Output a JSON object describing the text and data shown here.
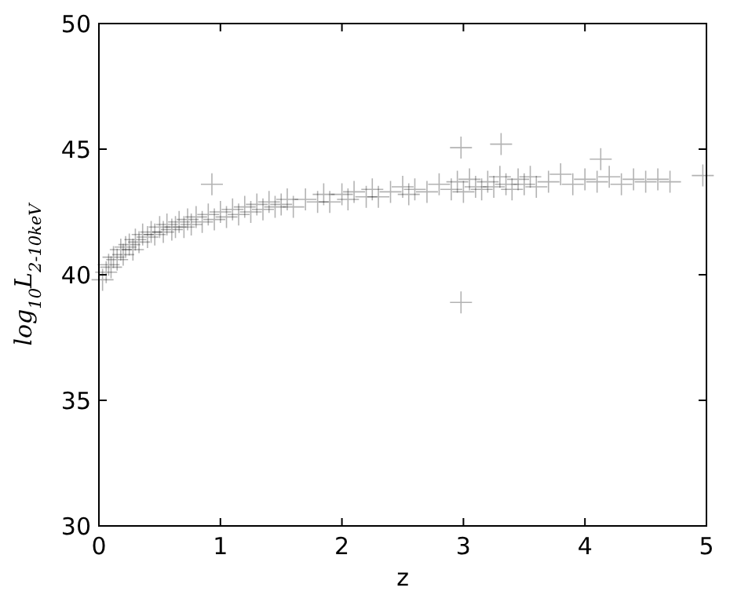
{
  "chart_data": {
    "type": "scatter",
    "xlabel": "z",
    "ylabel": "log$_{10}$L$_{2-10keV}$",
    "xlim": [
      0,
      5
    ],
    "ylim": [
      30,
      50
    ],
    "xticks": [
      0,
      1,
      2,
      3,
      4,
      5
    ],
    "yticks": [
      30,
      35,
      40,
      45,
      50
    ],
    "marker": "cross",
    "grid": false,
    "series": [
      {
        "color": "#000000",
        "x": [
          0.03,
          0.06,
          0.08,
          0.1,
          0.12,
          0.15,
          0.18,
          0.2,
          0.22,
          0.25,
          0.28,
          0.3,
          0.33,
          0.36,
          0.4,
          0.43,
          0.46,
          0.5,
          0.53,
          0.56,
          0.6,
          0.63,
          0.66,
          0.7,
          0.73,
          0.76,
          0.8,
          0.85,
          0.9,
          0.95,
          1.0,
          1.05,
          1.1,
          1.15,
          1.2,
          1.25,
          1.3,
          1.35,
          1.4,
          1.45,
          1.5,
          1.55,
          1.6,
          1.7,
          1.8,
          1.85,
          1.9,
          2.0,
          2.05,
          2.1,
          2.2,
          2.25,
          2.3,
          2.4,
          2.5,
          2.55,
          2.6,
          2.7,
          2.8,
          2.9,
          2.95,
          3.0,
          3.05,
          3.1,
          3.15,
          3.2,
          3.25,
          3.3,
          3.35,
          3.4,
          3.45,
          3.5,
          3.55,
          3.6,
          3.7,
          3.8,
          3.9,
          4.0,
          4.1,
          4.2,
          4.3,
          4.4,
          4.5,
          4.6,
          4.7,
          0.93,
          2.98,
          3.31,
          2.98,
          4.13,
          4.97
        ],
        "values": [
          39.8,
          40.1,
          40.4,
          40.3,
          40.7,
          40.6,
          41.0,
          40.8,
          41.1,
          41.2,
          41.0,
          41.4,
          41.3,
          41.6,
          41.5,
          41.7,
          41.6,
          41.9,
          41.7,
          42.0,
          41.8,
          41.9,
          42.1,
          41.9,
          42.2,
          42.0,
          42.3,
          42.1,
          42.4,
          42.2,
          42.5,
          42.3,
          42.6,
          42.4,
          42.7,
          42.5,
          42.8,
          42.6,
          42.9,
          42.7,
          42.8,
          43.0,
          42.7,
          43.0,
          42.9,
          43.2,
          42.9,
          43.2,
          43.0,
          43.3,
          43.1,
          43.4,
          43.1,
          43.3,
          43.5,
          43.2,
          43.4,
          43.3,
          43.6,
          43.4,
          43.7,
          43.3,
          43.8,
          43.5,
          43.4,
          43.7,
          43.5,
          43.9,
          43.6,
          43.4,
          43.8,
          43.6,
          43.9,
          43.5,
          43.7,
          44.0,
          43.6,
          43.8,
          43.7,
          43.9,
          43.6,
          43.8,
          43.7,
          43.8,
          43.7,
          43.6,
          45.06,
          45.2,
          38.9,
          44.6,
          43.95
        ]
      }
    ]
  }
}
